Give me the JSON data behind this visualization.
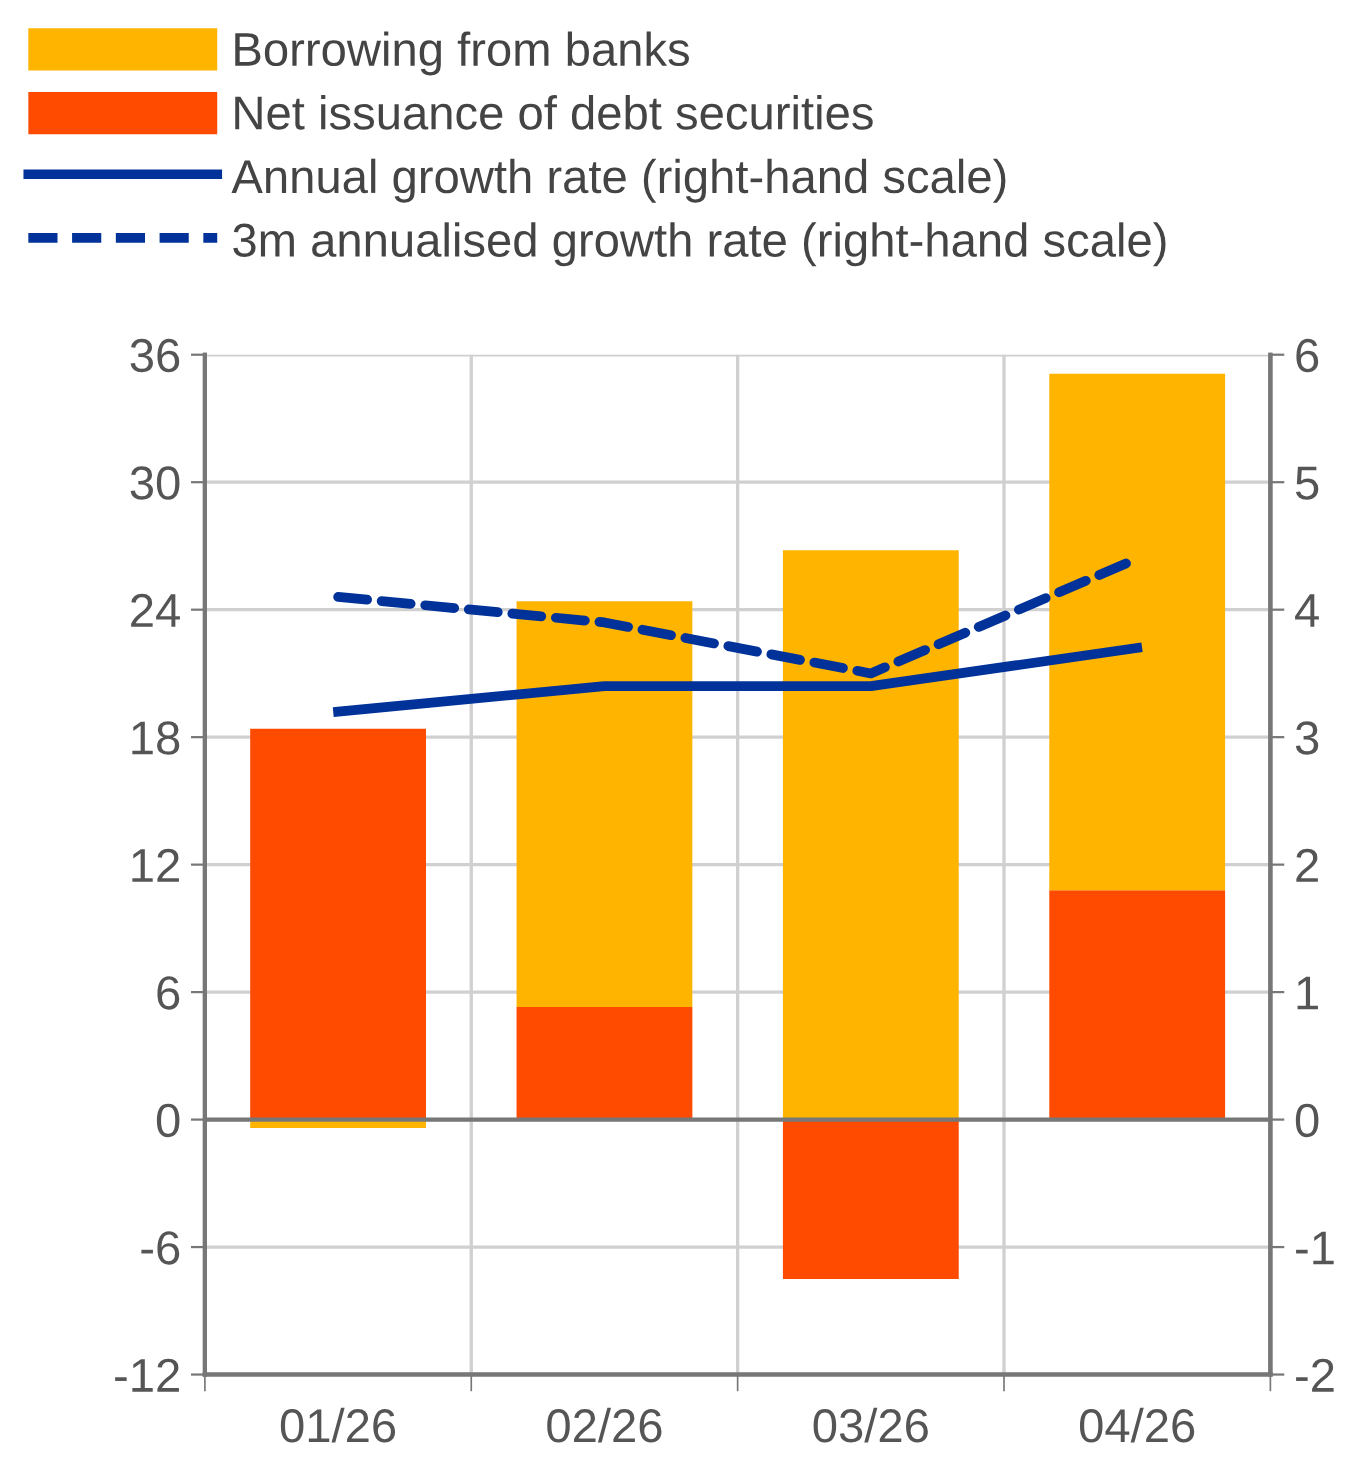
{
  "chart_data": {
    "type": "bar",
    "stacked": true,
    "categories": [
      "01/26",
      "02/26",
      "03/26",
      "04/26"
    ],
    "series": [
      {
        "name": "Net issuance of debt securities",
        "color": "#ff4b00",
        "values": [
          18.4,
          5.3,
          -7.5,
          10.8
        ]
      },
      {
        "name": "Borrowing from banks",
        "color": "#ffb400",
        "values": [
          -0.4,
          19.1,
          26.8,
          24.3
        ]
      },
      {
        "name": "Annual growth rate (right-hand scale)",
        "type": "line",
        "axis": "y2",
        "color": "#003299",
        "line_style": "solid",
        "values": [
          3.2,
          3.4,
          3.4,
          3.7
        ]
      },
      {
        "name": "3m annualised growth rate (right-hand scale)",
        "type": "line",
        "axis": "y2",
        "color": "#003299",
        "line_style": "dashed",
        "values": [
          4.1,
          3.9,
          3.5,
          4.4
        ]
      }
    ],
    "ylim": [
      -12,
      36
    ],
    "yticks": [
      -12,
      -6,
      0,
      6,
      12,
      18,
      24,
      30,
      36
    ],
    "y2lim": [
      -2,
      6
    ],
    "y2ticks": [
      -2,
      -1,
      0,
      1,
      2,
      3,
      4,
      5,
      6
    ],
    "grid": true,
    "legend": "top left",
    "marker": "none"
  }
}
